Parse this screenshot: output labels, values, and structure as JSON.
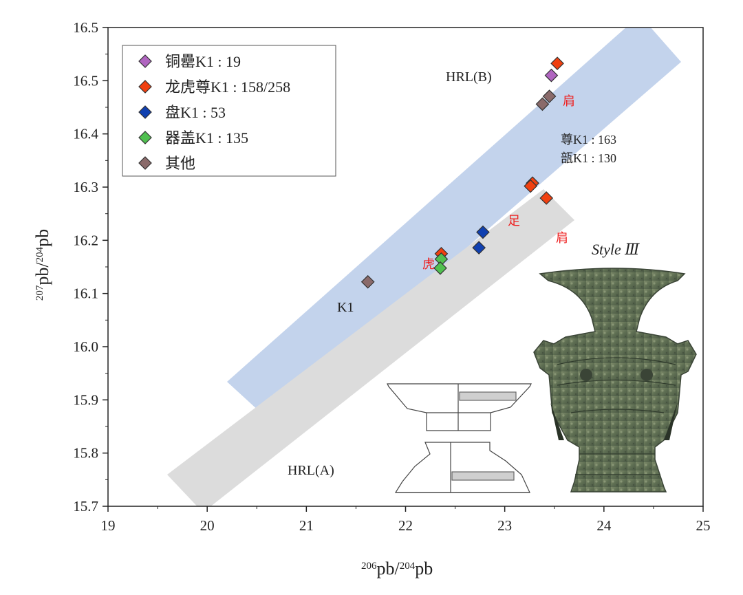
{
  "chart_data": {
    "type": "scatter",
    "xlabel": "206pb/204pb",
    "ylabel": "207pb/204pb",
    "xlim": [
      19,
      25
    ],
    "ylim": [
      15.7,
      16.5
    ],
    "x_ticks": [
      "19",
      "20",
      "21",
      "22",
      "23",
      "24",
      "25"
    ],
    "y_ticks": [
      "15.7",
      "15.8",
      "15.9",
      "16.0",
      "16.1",
      "16.2",
      "16.3",
      "16.4",
      "16.5",
      "16.5"
    ],
    "legend_position": "top-left",
    "series": [
      {
        "name": "铜罍K1 : 19",
        "color": "#b065c0",
        "points": [
          {
            "x": 23.47,
            "y": 16.42
          }
        ]
      },
      {
        "name": "龙虎尊K1 : 158/258",
        "color": "#f04010",
        "points": [
          {
            "x": 23.53,
            "y": 16.44
          },
          {
            "x": 23.28,
            "y": 16.24
          },
          {
            "x": 23.26,
            "y": 16.235
          },
          {
            "x": 23.42,
            "y": 16.215
          },
          {
            "x": 22.36,
            "y": 16.122
          }
        ]
      },
      {
        "name": "盘K1 : 53",
        "color": "#1040b0",
        "points": [
          {
            "x": 22.78,
            "y": 16.158
          },
          {
            "x": 22.74,
            "y": 16.132
          }
        ]
      },
      {
        "name": "器盖K1 : 135",
        "color": "#50c050",
        "points": [
          {
            "x": 22.36,
            "y": 16.113
          },
          {
            "x": 22.35,
            "y": 16.098
          }
        ]
      },
      {
        "name": "其他",
        "color": "#8a6a6a",
        "points": [
          {
            "x": 23.45,
            "y": 16.385
          },
          {
            "x": 23.38,
            "y": 16.372
          },
          {
            "x": 21.62,
            "y": 16.075
          }
        ]
      }
    ],
    "bands": [
      {
        "label": "HRL(B)",
        "color": "#c3d3ec"
      },
      {
        "label": "HRL(A)",
        "color": "#dcdcdc"
      }
    ],
    "annotations": [
      {
        "text": "肩",
        "color": "#ee2020"
      },
      {
        "text": "尊K1 : 163",
        "color": "#222222"
      },
      {
        "text": "瓿K1 : 130",
        "color": "#222222"
      },
      {
        "text": "足",
        "color": "#ee2020"
      },
      {
        "text": "肩",
        "color": "#ee2020"
      },
      {
        "text": "虎",
        "color": "#ee2020"
      },
      {
        "text": "K1",
        "color": "#222222"
      }
    ],
    "inset_label": "Style Ⅲ"
  }
}
